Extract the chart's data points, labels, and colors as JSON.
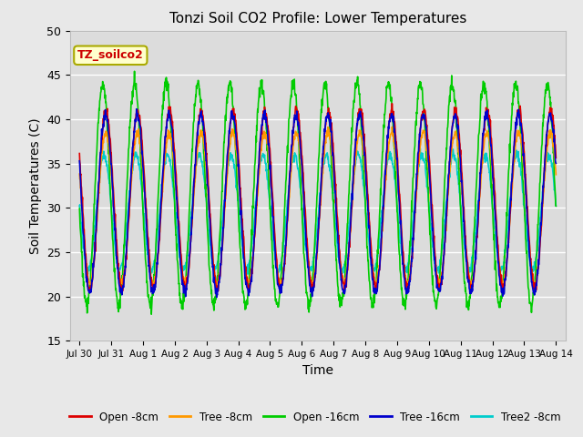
{
  "title": "Tonzi Soil CO2 Profile: Lower Temperatures",
  "xlabel": "Time",
  "ylabel": "Soil Temperatures (C)",
  "ylim": [
    15,
    50
  ],
  "yticks": [
    15,
    20,
    25,
    30,
    35,
    40,
    45,
    50
  ],
  "x_labels": [
    "Jul 30",
    "Jul 31",
    "Aug 1",
    "Aug 2",
    "Aug 3",
    "Aug 4",
    "Aug 5",
    "Aug 6",
    "Aug 7",
    "Aug 8",
    "Aug 9",
    "Aug 10",
    "Aug 11",
    "Aug 12",
    "Aug 13",
    "Aug 14"
  ],
  "colors": {
    "open_8cm": "#dd0000",
    "tree_8cm": "#ff9900",
    "open_16cm": "#00cc00",
    "tree_16cm": "#0000cc",
    "tree2_8cm": "#00cccc"
  },
  "legend_labels": [
    "Open -8cm",
    "Tree -8cm",
    "Open -16cm",
    "Tree -16cm",
    "Tree2 -8cm"
  ],
  "annotation_text": "TZ_soilco2",
  "annotation_color": "#cc0000",
  "annotation_bg": "#ffffcc",
  "fig_bg": "#e8e8e8",
  "plot_bg": "#dcdcdc",
  "grid_color": "#ffffff"
}
